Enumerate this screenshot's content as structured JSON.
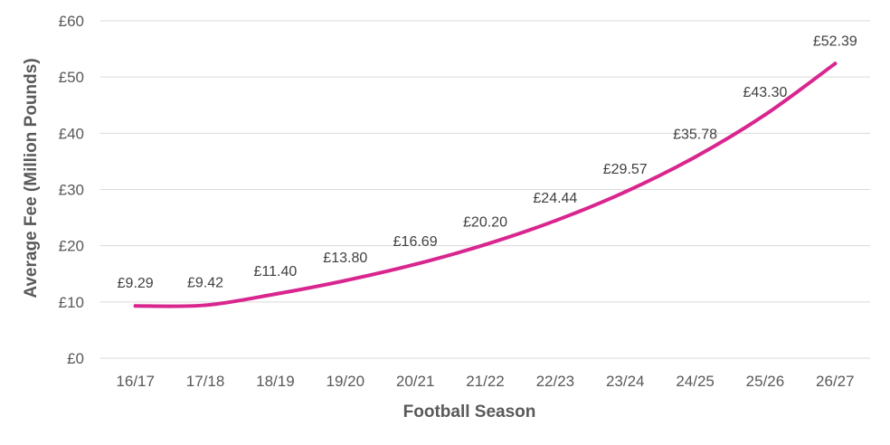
{
  "chart_data": {
    "type": "line",
    "title": "",
    "xlabel": "Football Season",
    "ylabel": "Average Fee (Million Pounds)",
    "categories": [
      "16/17",
      "17/18",
      "18/19",
      "19/20",
      "20/21",
      "21/22",
      "22/23",
      "23/24",
      "24/25",
      "25/26",
      "26/27"
    ],
    "series": [
      {
        "values": [
          9.29,
          9.42,
          11.4,
          13.8,
          16.69,
          20.2,
          24.44,
          29.57,
          35.78,
          43.3,
          52.39
        ],
        "data_labels": [
          "£9.29",
          "£9.42",
          "£11.40",
          "£13.80",
          "£16.69",
          "£20.20",
          "£24.44",
          "£29.57",
          "£35.78",
          "£43.30",
          "£52.39"
        ],
        "color": "#d9268f"
      }
    ],
    "ylim": [
      0,
      60
    ],
    "yticks": [
      0,
      10,
      20,
      30,
      40,
      50,
      60
    ],
    "ytick_labels": [
      "£0",
      "£10",
      "£20",
      "£30",
      "£40",
      "£50",
      "£60"
    ],
    "grid": true,
    "legend": "none"
  }
}
